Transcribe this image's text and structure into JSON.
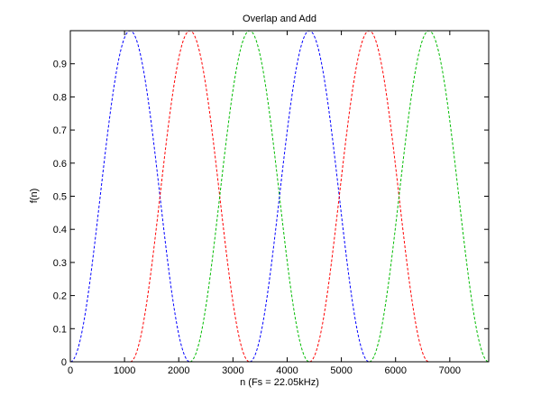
{
  "chart_data": {
    "type": "line",
    "title": "Overlap and Add",
    "xlabel": "n (Fs = 22.05kHz)",
    "ylabel": "f(n)",
    "xlim": [
      0,
      7718
    ],
    "ylim": [
      0,
      1
    ],
    "xticks": [
      0,
      1000,
      2000,
      3000,
      4000,
      5000,
      6000,
      7000
    ],
    "yticks": [
      0,
      0.1,
      0.2,
      0.3,
      0.4,
      0.5,
      0.6,
      0.7,
      0.8,
      0.9
    ],
    "xtick_labels": [
      "0",
      "1000",
      "2000",
      "3000",
      "4000",
      "5000",
      "6000",
      "7000"
    ],
    "ytick_labels": [
      "0",
      "0.1",
      "0.2",
      "0.3",
      "0.4",
      "0.5",
      "0.6",
      "0.7",
      "0.8",
      "0.9"
    ],
    "grid": false,
    "line_style": "dashed",
    "window": "hann",
    "window_length": 2205,
    "hop": 1102.5,
    "series": [
      {
        "color": "#0000ff",
        "start": 0,
        "end": 2205
      },
      {
        "color": "#ff0000",
        "start": 1102.5,
        "end": 3307.5
      },
      {
        "color": "#00bb00",
        "start": 2205,
        "end": 4410
      },
      {
        "color": "#0000ff",
        "start": 3307.5,
        "end": 5512.5
      },
      {
        "color": "#ff0000",
        "start": 4410,
        "end": 6615
      },
      {
        "color": "#00bb00",
        "start": 5512.5,
        "end": 7717.5
      }
    ]
  }
}
